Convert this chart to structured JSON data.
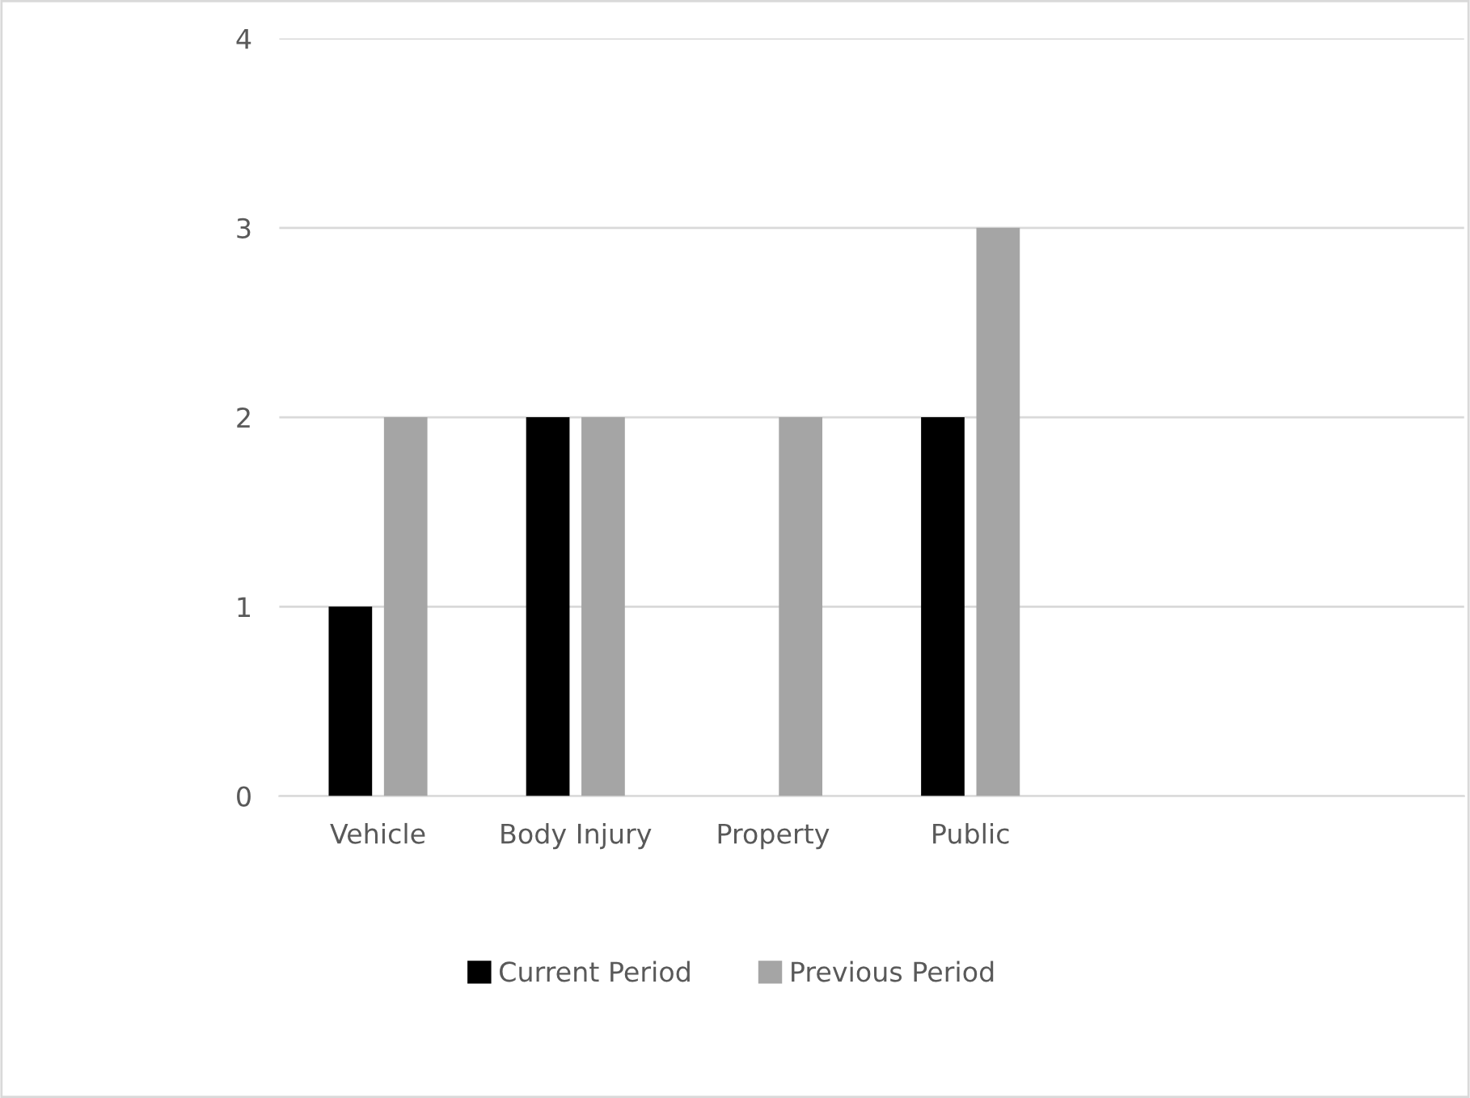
{
  "chart_data": {
    "type": "bar",
    "categories": [
      "Vehicle",
      "Body Injury",
      "Property",
      "Public",
      null,
      null
    ],
    "series": [
      {
        "name": "Current Period",
        "color": "#000000",
        "values": [
          1,
          2,
          null,
          2,
          null,
          null
        ]
      },
      {
        "name": "Previous Period",
        "color": "#a5a5a5",
        "values": [
          2,
          2,
          2,
          3,
          null,
          null
        ]
      }
    ],
    "ylim": [
      0,
      4
    ],
    "yticks": [
      0,
      1,
      2,
      3,
      4
    ],
    "grid": "y",
    "legend": "bottom"
  }
}
